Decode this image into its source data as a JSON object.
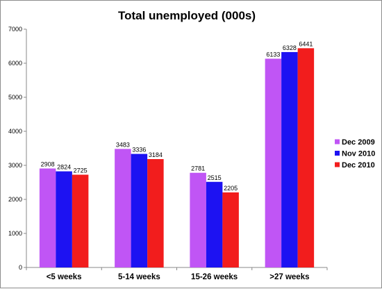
{
  "chart_data": {
    "type": "bar",
    "title": "Total unemployed (000s)",
    "xlabel": "",
    "ylabel": "",
    "categories": [
      "<5 weeks",
      "5-14 weeks",
      "15-26 weeks",
      ">27 weeks"
    ],
    "series": [
      {
        "name": "Dec 2009",
        "color": "#c055f5",
        "values": [
          2908,
          3483,
          2781,
          6133
        ]
      },
      {
        "name": "Nov 2010",
        "color": "#1d12f2",
        "values": [
          2824,
          3336,
          2515,
          6328
        ]
      },
      {
        "name": "Dec 2010",
        "color": "#f21d1d",
        "values": [
          2725,
          3184,
          2205,
          6441
        ]
      }
    ],
    "ylim": [
      0,
      7000
    ],
    "yticks": [
      0,
      1000,
      2000,
      3000,
      4000,
      5000,
      6000,
      7000
    ],
    "grid": false,
    "legend_position": "right",
    "data_labels": true
  }
}
